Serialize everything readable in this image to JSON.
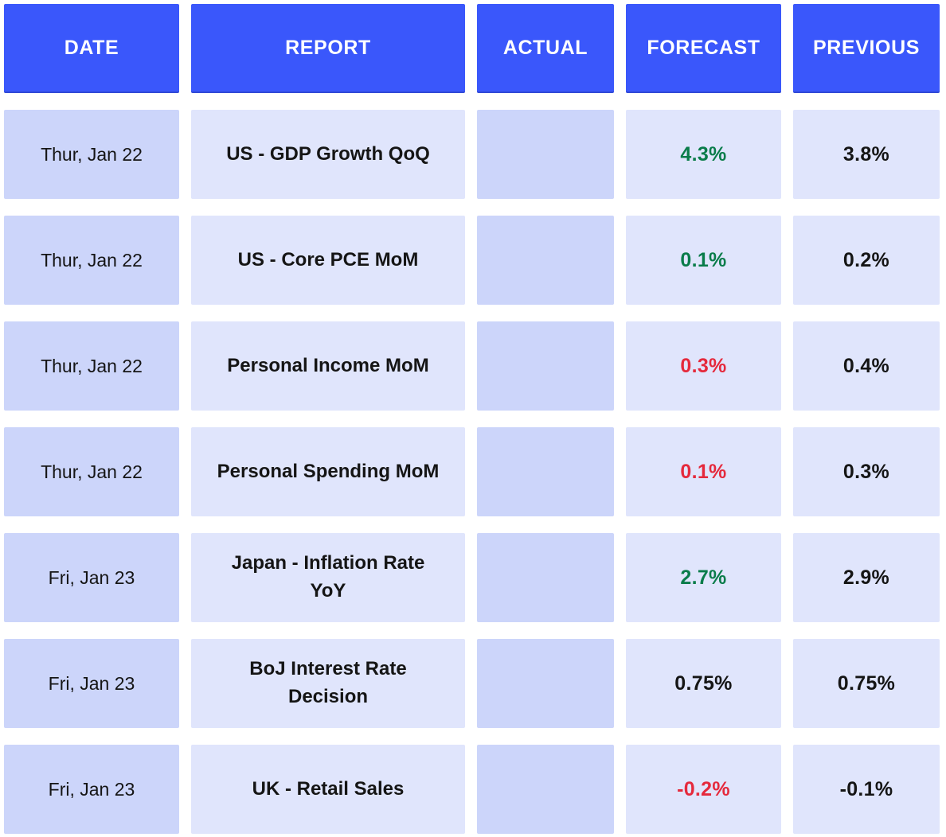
{
  "colors": {
    "header_bg": "#3a57fb",
    "cell_dark": "#ccd5fa",
    "cell_light": "#e0e5fc",
    "status_positive": "#0a7c4a",
    "status_negative": "#e5293c",
    "status_neutral": "#151515",
    "text": "#151515"
  },
  "chart_data": {
    "type": "table",
    "title": "",
    "columns": [
      "DATE",
      "REPORT",
      "ACTUAL",
      "FORECAST",
      "PREVIOUS"
    ],
    "rows": [
      {
        "date": "Thur, Jan 22",
        "report": "US - GDP Growth QoQ",
        "actual": "",
        "forecast": "4.3%",
        "forecast_status": "positive",
        "previous": "3.8%"
      },
      {
        "date": "Thur, Jan 22",
        "report": "US - Core PCE MoM",
        "actual": "",
        "forecast": "0.1%",
        "forecast_status": "positive",
        "previous": "0.2%"
      },
      {
        "date": "Thur, Jan 22",
        "report": "Personal Income MoM",
        "actual": "",
        "forecast": "0.3%",
        "forecast_status": "negative",
        "previous": "0.4%"
      },
      {
        "date": "Thur, Jan 22",
        "report": "Personal Spending MoM",
        "actual": "",
        "forecast": "0.1%",
        "forecast_status": "negative",
        "previous": "0.3%"
      },
      {
        "date": "Fri, Jan 23",
        "report": "Japan - Inflation Rate YoY",
        "actual": "",
        "forecast": "2.7%",
        "forecast_status": "positive",
        "previous": "2.9%"
      },
      {
        "date": "Fri, Jan 23",
        "report": "BoJ Interest Rate Decision",
        "actual": "",
        "forecast": "0.75%",
        "forecast_status": "neutral",
        "previous": "0.75%"
      },
      {
        "date": "Fri, Jan 23",
        "report": "UK - Retail Sales",
        "actual": "",
        "forecast": "-0.2%",
        "forecast_status": "negative",
        "previous": "-0.1%"
      }
    ]
  }
}
